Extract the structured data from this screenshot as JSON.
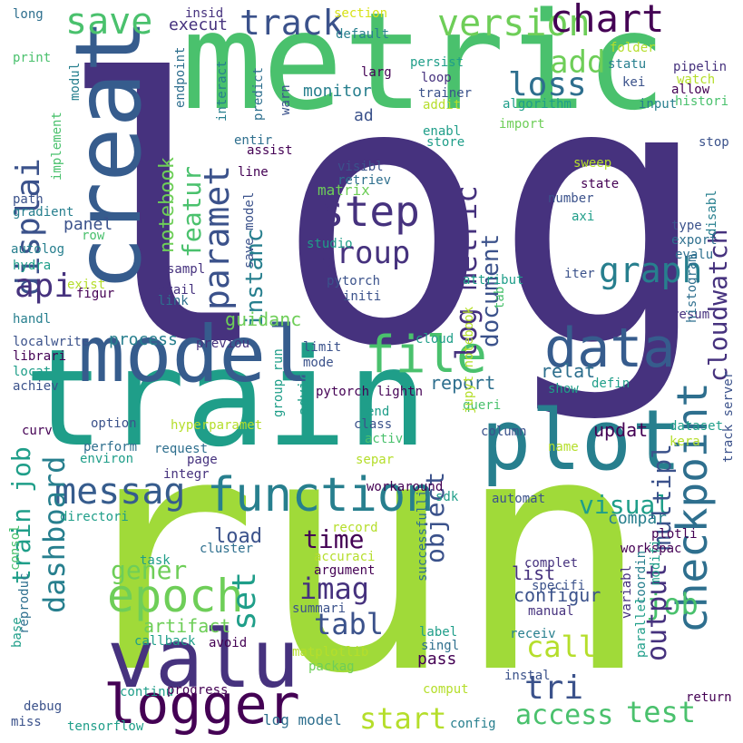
{
  "words": [
    {
      "text": "log",
      "color": "#46327e"
    },
    {
      "text": "run",
      "color": "#a0da39"
    },
    {
      "text": "train",
      "color": "#1f9e89"
    },
    {
      "text": "metric",
      "color": "#4ac16d"
    },
    {
      "text": "model",
      "color": "#365c8d"
    },
    {
      "text": "plot",
      "color": "#277f8e"
    },
    {
      "text": "valu",
      "color": "#46327e"
    },
    {
      "text": "creat",
      "color": "#365c8d"
    },
    {
      "text": "function",
      "color": "#277f8e"
    },
    {
      "text": "logger",
      "color": "#440154"
    },
    {
      "text": "data",
      "color": "#365c8d"
    },
    {
      "text": "file",
      "color": "#4ac16d"
    },
    {
      "text": "epoch",
      "color": "#6ece58"
    },
    {
      "text": "checkpoint",
      "color": "#2e6f8e"
    },
    {
      "text": "messag",
      "color": "#365c8d"
    },
    {
      "text": "step",
      "color": "#46327e"
    },
    {
      "text": "save",
      "color": "#4ac16d"
    },
    {
      "text": "track",
      "color": "#3b528b"
    },
    {
      "text": "version",
      "color": "#6ece58"
    },
    {
      "text": "chart",
      "color": "#440154"
    },
    {
      "text": "graph",
      "color": "#277f8e"
    },
    {
      "text": "paramet",
      "color": "#3b528b"
    },
    {
      "text": "displai",
      "color": "#3b528b"
    },
    {
      "text": "api",
      "color": "#46327e"
    },
    {
      "text": "loss",
      "color": "#2e6f8e"
    },
    {
      "text": "add",
      "color": "#6ece58"
    },
    {
      "text": "group",
      "color": "#46327e"
    },
    {
      "text": "log metric",
      "color": "#46327e"
    },
    {
      "text": "document",
      "color": "#3b528b"
    },
    {
      "text": "set",
      "color": "#1f9e89"
    },
    {
      "text": "tabl",
      "color": "#3b528b"
    },
    {
      "text": "tri",
      "color": "#3b528b"
    },
    {
      "text": "test",
      "color": "#4ac16d"
    },
    {
      "text": "access",
      "color": "#4ac16d"
    },
    {
      "text": "start",
      "color": "#b5de2b"
    },
    {
      "text": "call",
      "color": "#b5de2b"
    },
    {
      "text": "job",
      "color": "#4ac16d"
    },
    {
      "text": "output",
      "color": "#46327e"
    },
    {
      "text": "visual",
      "color": "#1f9e89"
    },
    {
      "text": "multipl",
      "color": "#3b528b"
    },
    {
      "text": "cloudwatch",
      "color": "#46327e"
    },
    {
      "text": "featur",
      "color": "#4ac16d"
    },
    {
      "text": "notebook",
      "color": "#6ece58"
    },
    {
      "text": "instanc",
      "color": "#277f8e"
    },
    {
      "text": "imag",
      "color": "#46327e"
    },
    {
      "text": "time",
      "color": "#440154"
    },
    {
      "text": "object",
      "color": "#3b528b"
    },
    {
      "text": "gener",
      "color": "#6ece58"
    },
    {
      "text": "dashboard",
      "color": "#277f8e"
    },
    {
      "text": "train job",
      "color": "#1f9e89"
    },
    {
      "text": "artifact",
      "color": "#6ece58"
    },
    {
      "text": "load",
      "color": "#3b528b"
    },
    {
      "text": "configur",
      "color": "#3b528b"
    },
    {
      "text": "list",
      "color": "#46327e"
    },
    {
      "text": "compar",
      "color": "#277f8e"
    },
    {
      "text": "updat",
      "color": "#440154"
    },
    {
      "text": "report",
      "color": "#2e6f8e"
    },
    {
      "text": "relat",
      "color": "#2e6f8e"
    },
    {
      "text": "process",
      "color": "#277f8e"
    },
    {
      "text": "guidanc",
      "color": "#6ece58"
    },
    {
      "text": "monitor",
      "color": "#277f8e"
    },
    {
      "text": "matrix",
      "color": "#6ece58"
    },
    {
      "text": "execut",
      "color": "#46327e"
    },
    {
      "text": "ad",
      "color": "#3b528b"
    },
    {
      "text": "pass",
      "color": "#440154"
    },
    {
      "text": "log model",
      "color": "#2e6f8e"
    },
    {
      "text": "advic",
      "color": "#1f9e89"
    },
    {
      "text": "pytorch lightn",
      "color": "#440154"
    },
    {
      "text": "panel",
      "color": "#3b528b"
    },
    {
      "text": "insid",
      "color": "#46327e"
    },
    {
      "text": "section",
      "color": "#d8e219"
    },
    {
      "text": "default",
      "color": "#277f8e"
    },
    {
      "text": "long",
      "color": "#2e6f8e"
    },
    {
      "text": "print",
      "color": "#4ac16d"
    },
    {
      "text": "modul",
      "color": "#277f8e"
    },
    {
      "text": "endpoint",
      "color": "#2e6f8e"
    },
    {
      "text": "larg",
      "color": "#440154"
    },
    {
      "text": "persist",
      "color": "#1f9e89"
    },
    {
      "text": "folder",
      "color": "#b5de2b"
    },
    {
      "text": "statu",
      "color": "#277f8e"
    },
    {
      "text": "pipelin",
      "color": "#46327e"
    },
    {
      "text": "watch",
      "color": "#b5de2b"
    },
    {
      "text": "kei",
      "color": "#3b528b"
    },
    {
      "text": "allow",
      "color": "#440154"
    },
    {
      "text": "loop",
      "color": "#46327e"
    },
    {
      "text": "trainer",
      "color": "#3b528b"
    },
    {
      "text": "addit",
      "color": "#b5de2b"
    },
    {
      "text": "algorithm",
      "color": "#1f9e89"
    },
    {
      "text": "input",
      "color": "#277f8e"
    },
    {
      "text": "histori",
      "color": "#4ac16d"
    },
    {
      "text": "interact",
      "color": "#277f8e"
    },
    {
      "text": "predict",
      "color": "#2e6f8e"
    },
    {
      "text": "warn",
      "color": "#3b528b"
    },
    {
      "text": "import",
      "color": "#6ece58"
    },
    {
      "text": "entir",
      "color": "#2e6f8e"
    },
    {
      "text": "enabl",
      "color": "#1f9e89"
    },
    {
      "text": "store",
      "color": "#1f9e89"
    },
    {
      "text": "assist",
      "color": "#440154"
    },
    {
      "text": "stop",
      "color": "#3b528b"
    },
    {
      "text": "implement",
      "color": "#4ac16d"
    },
    {
      "text": "line",
      "color": "#440154"
    },
    {
      "text": "visibl",
      "color": "#3b528b"
    },
    {
      "text": "retriev",
      "color": "#2e6f8e"
    },
    {
      "text": "sweep",
      "color": "#b5de2b"
    },
    {
      "text": "state",
      "color": "#440154"
    },
    {
      "text": "path",
      "color": "#3b528b"
    },
    {
      "text": "gradient",
      "color": "#277f8e"
    },
    {
      "text": "number",
      "color": "#3b528b"
    },
    {
      "text": "axi",
      "color": "#1f9e89"
    },
    {
      "text": "disabl",
      "color": "#277f8e"
    },
    {
      "text": "type",
      "color": "#3b528b"
    },
    {
      "text": "export",
      "color": "#2e6f8e"
    },
    {
      "text": "evalu",
      "color": "#2e6f8e"
    },
    {
      "text": "row",
      "color": "#4ac16d"
    },
    {
      "text": "autolog",
      "color": "#277f8e"
    },
    {
      "text": "hydra",
      "color": "#1f9e89"
    },
    {
      "text": "studio",
      "color": "#1f9e89"
    },
    {
      "text": "save model",
      "color": "#3b528b"
    },
    {
      "text": "pytorch",
      "color": "#3b528b"
    },
    {
      "text": "initi",
      "color": "#3b528b"
    },
    {
      "text": "iter",
      "color": "#3b528b"
    },
    {
      "text": "exist",
      "color": "#b5de2b"
    },
    {
      "text": "figur",
      "color": "#440154"
    },
    {
      "text": "sampl",
      "color": "#46327e"
    },
    {
      "text": "avail",
      "color": "#46327e"
    },
    {
      "text": "link",
      "color": "#2e6f8e"
    },
    {
      "text": "attribut",
      "color": "#1f9e89"
    },
    {
      "text": "tab",
      "color": "#4ac16d"
    },
    {
      "text": "resum",
      "color": "#46327e"
    },
    {
      "text": "handl",
      "color": "#277f8e"
    },
    {
      "text": "localwrite",
      "color": "#3b528b"
    },
    {
      "text": "librari",
      "color": "#440154"
    },
    {
      "text": "previou",
      "color": "#46327e"
    },
    {
      "text": "limit",
      "color": "#3b528b"
    },
    {
      "text": "cloud",
      "color": "#1f9e89"
    },
    {
      "text": "histogram",
      "color": "#2e6f8e"
    },
    {
      "text": "locat",
      "color": "#1f9e89"
    },
    {
      "text": "achiev",
      "color": "#3b528b"
    },
    {
      "text": "mode",
      "color": "#3b528b"
    },
    {
      "text": "show",
      "color": "#1f9e89"
    },
    {
      "text": "defin",
      "color": "#1f9e89"
    },
    {
      "text": "queri",
      "color": "#4ac16d"
    },
    {
      "text": "curv",
      "color": "#440154"
    },
    {
      "text": "option",
      "color": "#3b528b"
    },
    {
      "text": "hyperparamet",
      "color": "#b5de2b"
    },
    {
      "text": "end",
      "color": "#1f9e89"
    },
    {
      "text": "class",
      "color": "#3b528b"
    },
    {
      "text": "activ",
      "color": "#4ac16d"
    },
    {
      "text": "dataset",
      "color": "#1f9e89"
    },
    {
      "text": "column",
      "color": "#3b528b"
    },
    {
      "text": "kera",
      "color": "#b5de2b"
    },
    {
      "text": "perform",
      "color": "#2e6f8e"
    },
    {
      "text": "environ",
      "color": "#1f9e89"
    },
    {
      "text": "request",
      "color": "#2e6f8e"
    },
    {
      "text": "page",
      "color": "#46327e"
    },
    {
      "text": "jupyt notebook",
      "color": "#b5de2b"
    },
    {
      "text": "name",
      "color": "#b5de2b"
    },
    {
      "text": "separ",
      "color": "#b5de2b"
    },
    {
      "text": "integr",
      "color": "#46327e"
    },
    {
      "text": "group run",
      "color": "#1f9e89"
    },
    {
      "text": "workaround",
      "color": "#440154"
    },
    {
      "text": "track server",
      "color": "#3b528b"
    },
    {
      "text": "sdk",
      "color": "#1f9e89"
    },
    {
      "text": "automat",
      "color": "#3b528b"
    },
    {
      "text": "directori",
      "color": "#1f9e89"
    },
    {
      "text": "record",
      "color": "#b5de2b"
    },
    {
      "text": "plotli",
      "color": "#440154"
    },
    {
      "text": "workspac",
      "color": "#440154"
    },
    {
      "text": "cluster",
      "color": "#2e6f8e"
    },
    {
      "text": "task",
      "color": "#1f9e89"
    },
    {
      "text": "accuraci",
      "color": "#b5de2b"
    },
    {
      "text": "argument",
      "color": "#440154"
    },
    {
      "text": "complet",
      "color": "#46327e"
    },
    {
      "text": "specifi",
      "color": "#3b528b"
    },
    {
      "text": "consol",
      "color": "#4ac16d"
    },
    {
      "text": "successfulli",
      "color": "#2e6f8e"
    },
    {
      "text": "summari",
      "color": "#3b528b"
    },
    {
      "text": "manual",
      "color": "#46327e"
    },
    {
      "text": "variabl",
      "color": "#46327e"
    },
    {
      "text": "coordin",
      "color": "#277f8e"
    },
    {
      "text": "modifi",
      "color": "#1f9e89"
    },
    {
      "text": "receiv",
      "color": "#277f8e"
    },
    {
      "text": "reproduc",
      "color": "#2e6f8e"
    },
    {
      "text": "callback",
      "color": "#1f9e89"
    },
    {
      "text": "avoid",
      "color": "#440154"
    },
    {
      "text": "label",
      "color": "#1f9e89"
    },
    {
      "text": "singl",
      "color": "#2e6f8e"
    },
    {
      "text": "matplotlib",
      "color": "#b5de2b"
    },
    {
      "text": "packag",
      "color": "#6ece58"
    },
    {
      "text": "instal",
      "color": "#3b528b"
    },
    {
      "text": "base",
      "color": "#1f9e89"
    },
    {
      "text": "parallel",
      "color": "#1f9e89"
    },
    {
      "text": "continu",
      "color": "#1f9e89"
    },
    {
      "text": "progress",
      "color": "#440154"
    },
    {
      "text": "return",
      "color": "#440154"
    },
    {
      "text": "debug",
      "color": "#3b528b"
    },
    {
      "text": "comput",
      "color": "#b5de2b"
    },
    {
      "text": "miss",
      "color": "#3b528b"
    },
    {
      "text": "tensorflow",
      "color": "#1f9e89"
    },
    {
      "text": "config",
      "color": "#277f8e"
    }
  ]
}
